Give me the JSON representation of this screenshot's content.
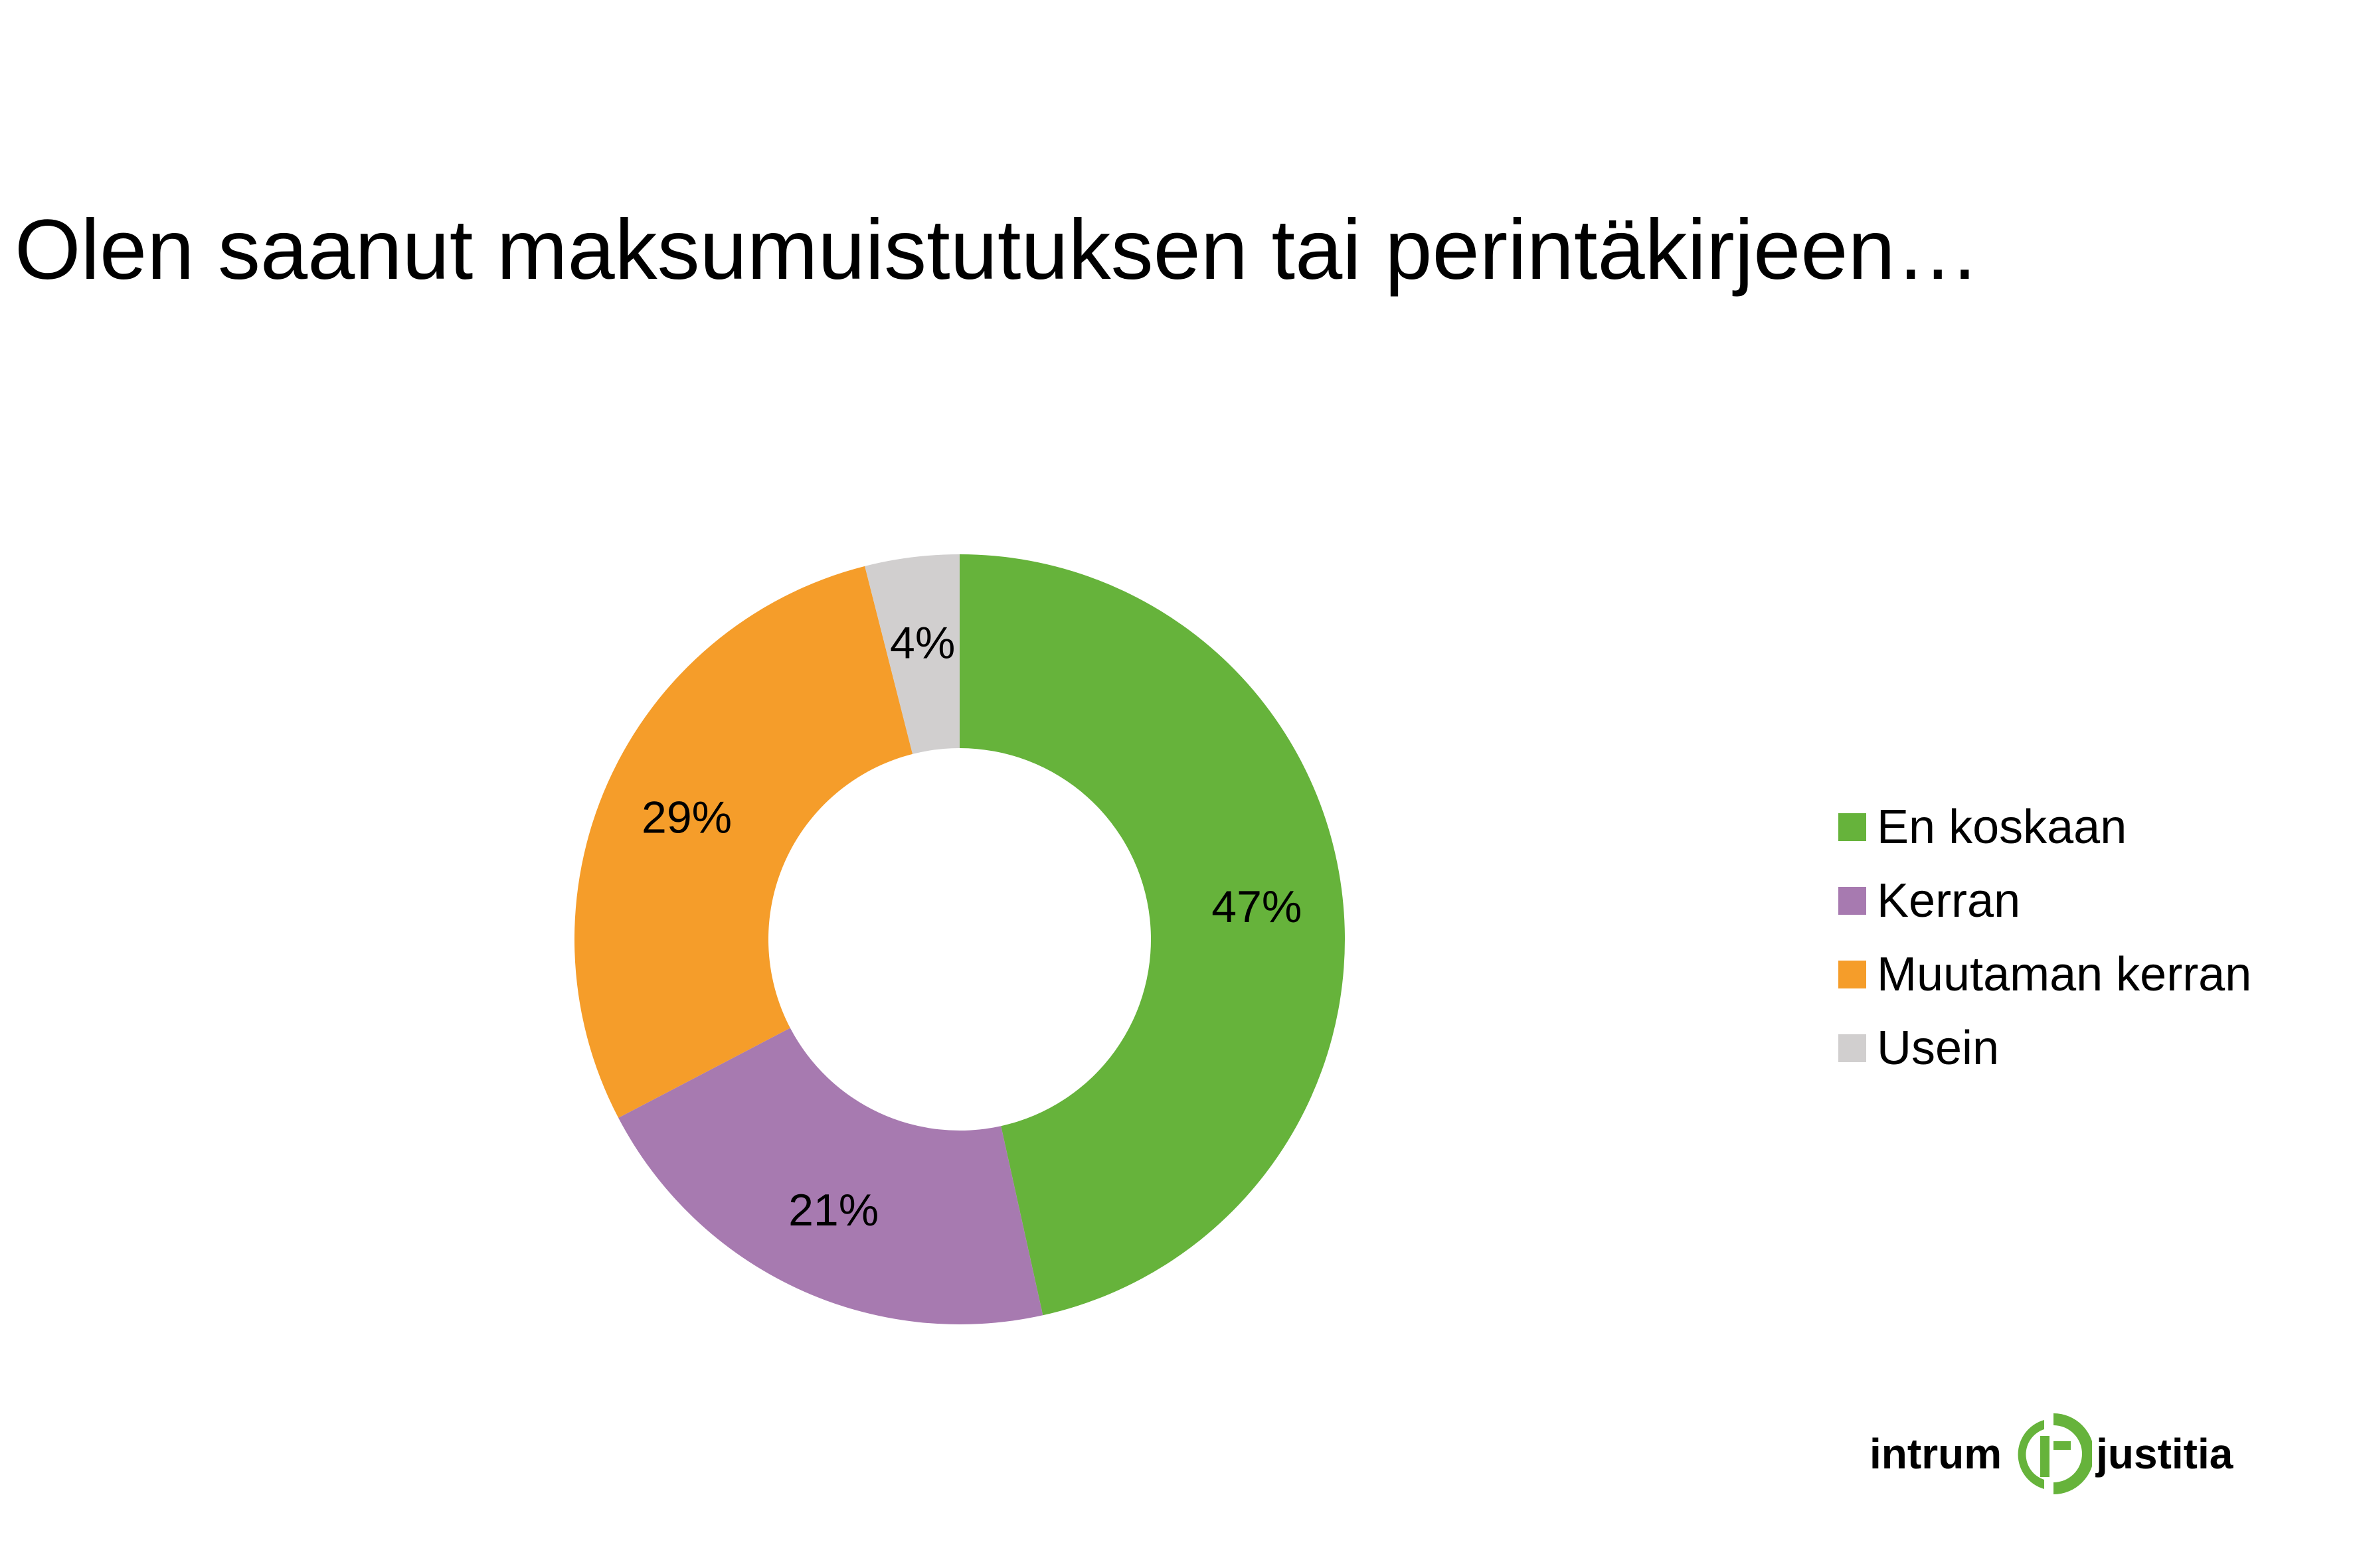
{
  "title": "Olen saanut maksumuistutuksen tai perintäkirjeen…",
  "chart_data": {
    "type": "pie",
    "donut": true,
    "categories": [
      "En koskaan",
      "Kerran",
      "Muutaman kerran",
      "Usein"
    ],
    "values": [
      47,
      21,
      29,
      4
    ],
    "data_labels": [
      "47%",
      "21%",
      "29%",
      "4%"
    ],
    "colors": [
      "#66b33b",
      "#a77ab0",
      "#f59d2a",
      "#d1cfcf"
    ],
    "legend_position": "right",
    "start": "top",
    "direction": "clockwise"
  },
  "legend": {
    "items": [
      {
        "label": "En koskaan",
        "color": "#66b33b"
      },
      {
        "label": "Kerran",
        "color": "#a77ab0"
      },
      {
        "label": "Muutaman kerran",
        "color": "#f59d2a"
      },
      {
        "label": "Usein",
        "color": "#d1cfcf"
      }
    ]
  },
  "logo": {
    "left_word": "intrum",
    "right_word": "justitia",
    "mark_icon": "intrum-justitia-logo-mark",
    "mark_color": "#66b33b"
  }
}
